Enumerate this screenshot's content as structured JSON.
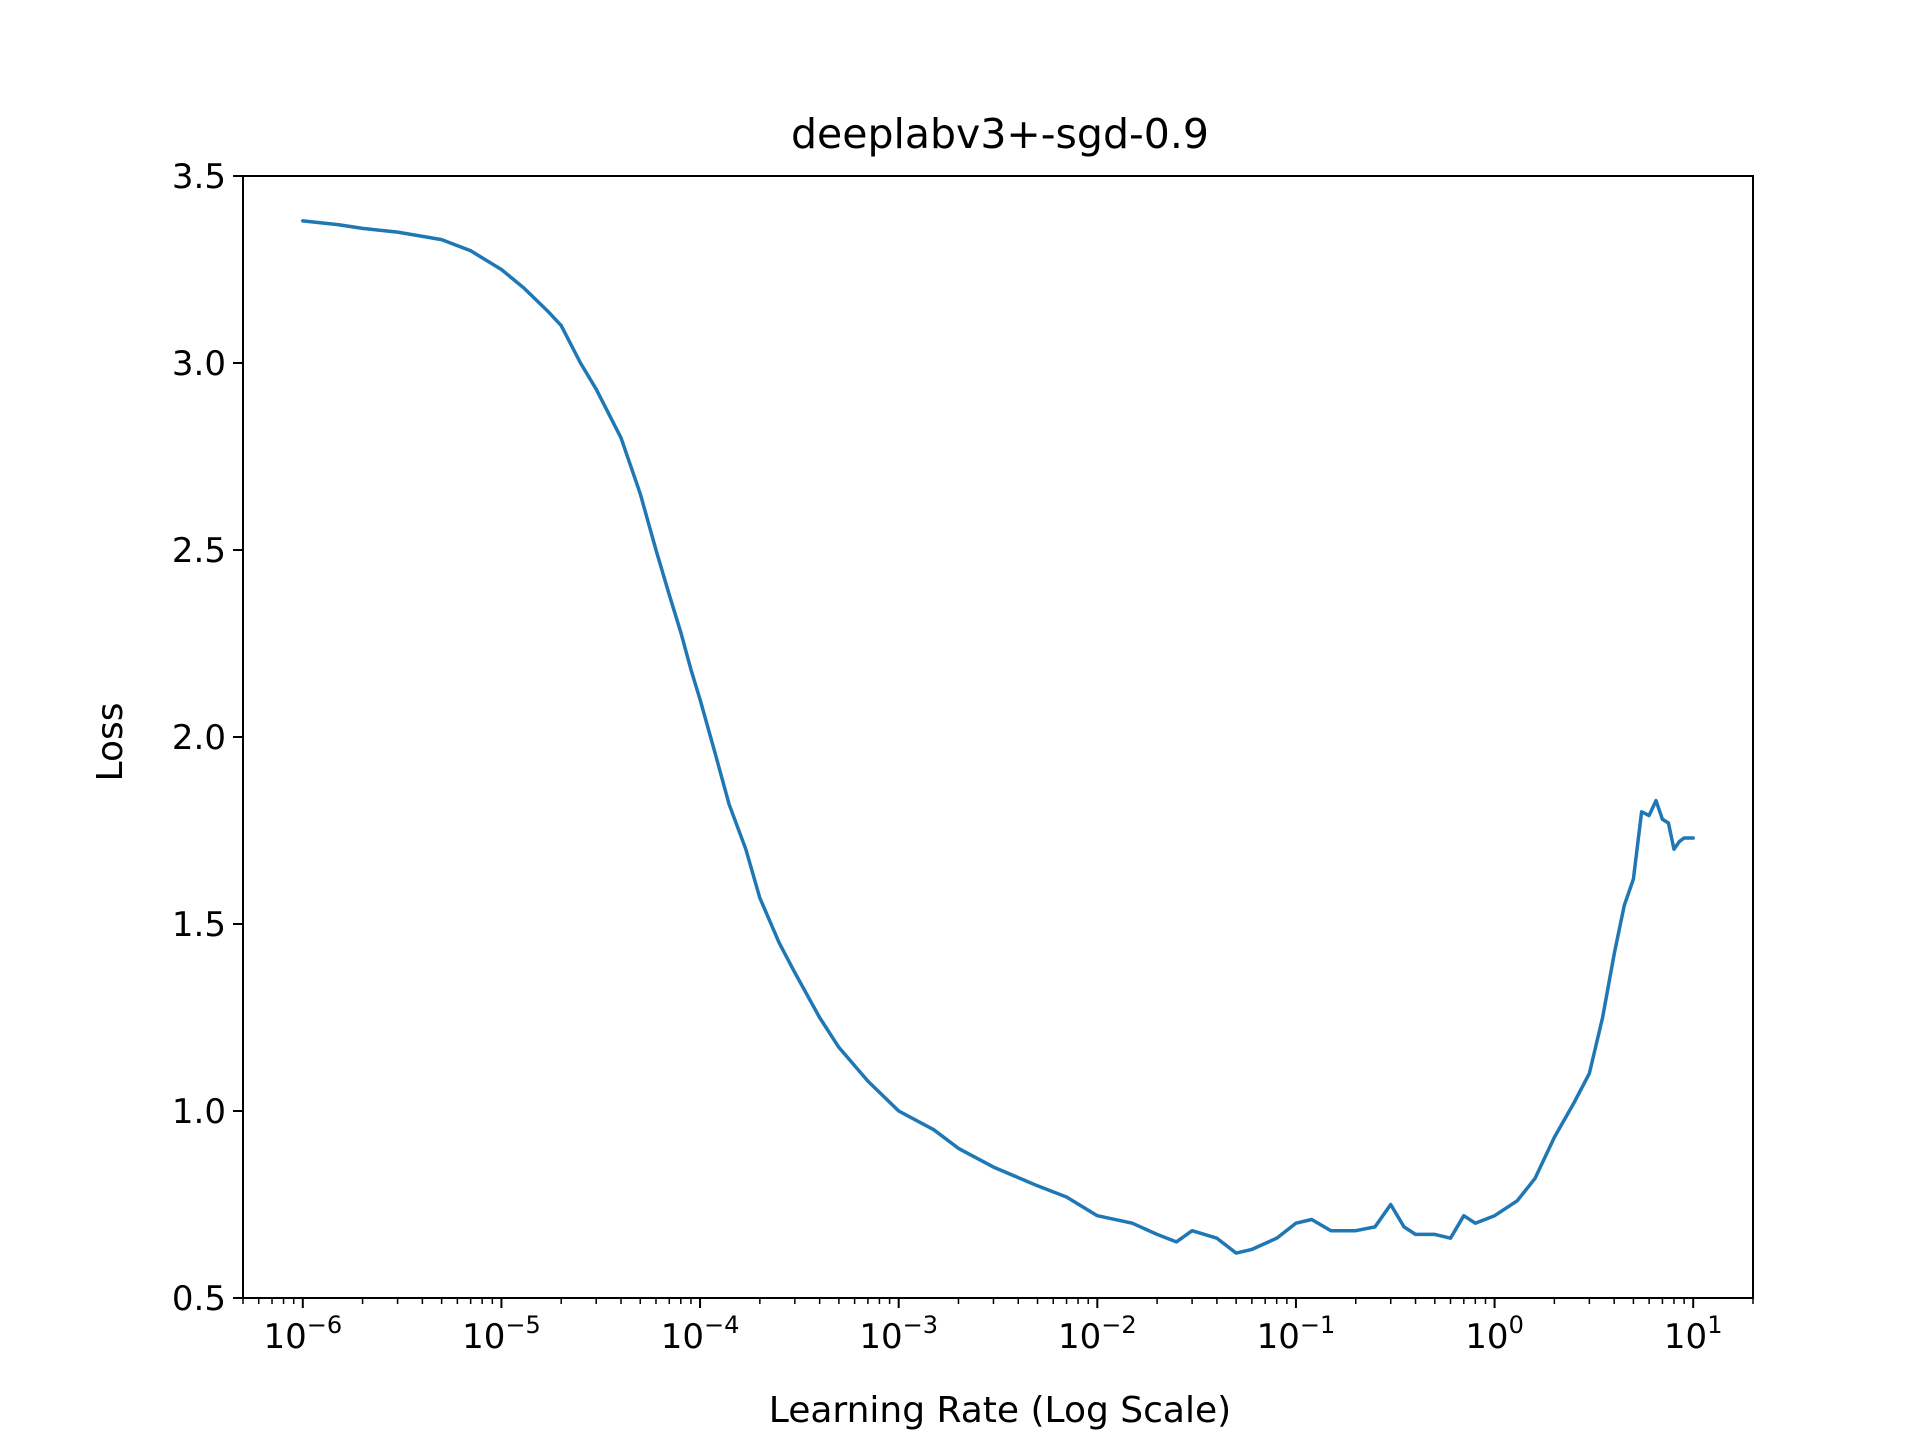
{
  "chart_data": {
    "type": "line",
    "title": "deeplabv3+-sgd-0.9",
    "xlabel": "Learning Rate (Log Scale)",
    "ylabel": "Loss",
    "xscale": "log",
    "xlim": [
      5e-07,
      20
    ],
    "ylim": [
      0.5,
      3.5
    ],
    "x_ticks": [
      {
        "base": "10",
        "exp": "−6",
        "value": 1e-06
      },
      {
        "base": "10",
        "exp": "−5",
        "value": 1e-05
      },
      {
        "base": "10",
        "exp": "−4",
        "value": 0.0001
      },
      {
        "base": "10",
        "exp": "−3",
        "value": 0.001
      },
      {
        "base": "10",
        "exp": "−2",
        "value": 0.01
      },
      {
        "base": "10",
        "exp": "−1",
        "value": 0.1
      },
      {
        "base": "10",
        "exp": "0",
        "value": 1
      },
      {
        "base": "10",
        "exp": "1",
        "value": 10
      }
    ],
    "y_ticks": [
      "0.5",
      "1.0",
      "1.5",
      "2.0",
      "2.5",
      "3.0",
      "3.5"
    ],
    "grid": false,
    "line_color": "#1f77b4",
    "series": [
      {
        "x": [
          1e-06,
          1.5e-06,
          2e-06,
          3e-06,
          5e-06,
          7e-06,
          1e-05,
          1.3e-05,
          1.7e-05,
          2e-05,
          2.5e-05,
          3e-05,
          4e-05,
          5e-05,
          6e-05,
          7e-05,
          8e-05,
          9e-05,
          0.0001,
          0.00012,
          0.00014,
          0.00017,
          0.0002,
          0.00025,
          0.0003,
          0.0004,
          0.0005,
          0.0007,
          0.001,
          0.0015,
          0.002,
          0.003,
          0.005,
          0.007,
          0.01,
          0.015,
          0.02,
          0.025,
          0.03,
          0.04,
          0.05,
          0.06,
          0.08,
          0.1,
          0.12,
          0.15,
          0.2,
          0.25,
          0.3,
          0.35,
          0.4,
          0.5,
          0.6,
          0.7,
          0.8,
          1.0,
          1.3,
          1.6,
          2.0,
          2.5,
          3.0,
          3.5,
          4.0,
          4.5,
          5.0,
          5.5,
          6.0,
          6.5,
          7.0,
          7.5,
          8.0,
          8.5,
          9.0,
          10.0
        ],
        "y": [
          3.38,
          3.37,
          3.36,
          3.35,
          3.33,
          3.3,
          3.25,
          3.2,
          3.14,
          3.1,
          3.0,
          2.93,
          2.8,
          2.65,
          2.5,
          2.38,
          2.28,
          2.18,
          2.1,
          1.95,
          1.82,
          1.7,
          1.57,
          1.45,
          1.37,
          1.25,
          1.17,
          1.08,
          1.0,
          0.95,
          0.9,
          0.85,
          0.8,
          0.77,
          0.72,
          0.7,
          0.67,
          0.65,
          0.68,
          0.66,
          0.62,
          0.63,
          0.66,
          0.7,
          0.71,
          0.68,
          0.68,
          0.69,
          0.75,
          0.69,
          0.67,
          0.67,
          0.66,
          0.72,
          0.7,
          0.72,
          0.76,
          0.82,
          0.93,
          1.02,
          1.1,
          1.25,
          1.42,
          1.55,
          1.62,
          1.8,
          1.79,
          1.83,
          1.78,
          1.77,
          1.7,
          1.72,
          1.73,
          1.73
        ]
      }
    ]
  }
}
